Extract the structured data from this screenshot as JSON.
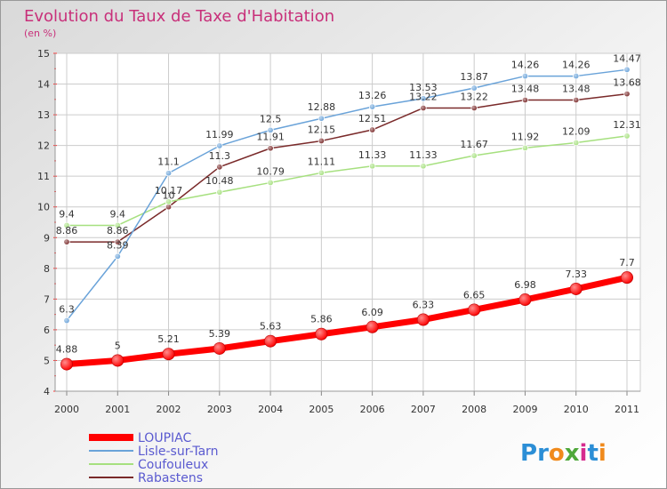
{
  "chart_data": {
    "type": "line",
    "title": "Evolution du Taux de Taxe d'Habitation",
    "subtitle": "(en %)",
    "categories": [
      "2000",
      "2001",
      "2002",
      "2003",
      "2004",
      "2005",
      "2006",
      "2007",
      "2008",
      "2009",
      "2010",
      "2011"
    ],
    "ylim": [
      4,
      15
    ],
    "yticks": [
      "4",
      "5",
      "6",
      "7",
      "8",
      "9",
      "10",
      "11",
      "12",
      "13",
      "14",
      "15"
    ],
    "grid": true,
    "series": [
      {
        "name": "LOUPIAC",
        "color": "#ff0000",
        "values": [
          4.88,
          5,
          5.21,
          5.39,
          5.63,
          5.86,
          6.09,
          6.33,
          6.65,
          6.98,
          7.33,
          7.7
        ],
        "labels": [
          "4.88",
          "5",
          "5.21",
          "5.39",
          "5.63",
          "5.86",
          "6.09",
          "6.33",
          "6.65",
          "6.98",
          "7.33",
          "7.7"
        ]
      },
      {
        "name": "Lisle-sur-Tarn",
        "color": "#6aa3d9",
        "values": [
          6.3,
          8.39,
          11.1,
          11.99,
          12.5,
          12.88,
          13.26,
          13.53,
          13.87,
          14.26,
          14.26,
          14.47
        ],
        "labels": [
          "6.3",
          "8.39",
          "11.1",
          "11.99",
          "12.5",
          "12.88",
          "13.26",
          "13.53",
          "13.87",
          "14.26",
          "14.26",
          "14.47"
        ]
      },
      {
        "name": "Coufouleux",
        "color": "#a6e07f",
        "values": [
          9.4,
          9.4,
          10.17,
          10.48,
          10.79,
          11.11,
          11.33,
          11.33,
          11.67,
          11.92,
          12.09,
          12.31
        ],
        "labels": [
          "9.4",
          "9.4",
          "10.17",
          "10.48",
          "10.79",
          "11.11",
          "11.33",
          "11.33",
          "11.67",
          "11.92",
          "12.09",
          "12.31"
        ]
      },
      {
        "name": "Rabastens",
        "color": "#7a2a2a",
        "values": [
          8.86,
          8.86,
          10,
          11.3,
          11.91,
          12.15,
          12.51,
          13.22,
          13.22,
          13.48,
          13.48,
          13.68
        ],
        "labels": [
          "8.86",
          "8.86",
          "10",
          "11.3",
          "11.91",
          "12.15",
          "12.51",
          "13.22",
          "13.22",
          "13.48",
          "13.48",
          "13.68"
        ]
      }
    ]
  },
  "colors": {
    "title": "#c8307a",
    "legend_text": "#5a5ad0",
    "axis_text": "#333333",
    "grid": "#cccccc",
    "tick_marks": "#ff3333"
  },
  "logo": {
    "text": "Proxiti",
    "colors": [
      "#2b8ed6",
      "#2b8ed6",
      "#f08a1c",
      "#4fa83a",
      "#d62b8e",
      "#2b8ed6",
      "#f08a1c"
    ]
  }
}
